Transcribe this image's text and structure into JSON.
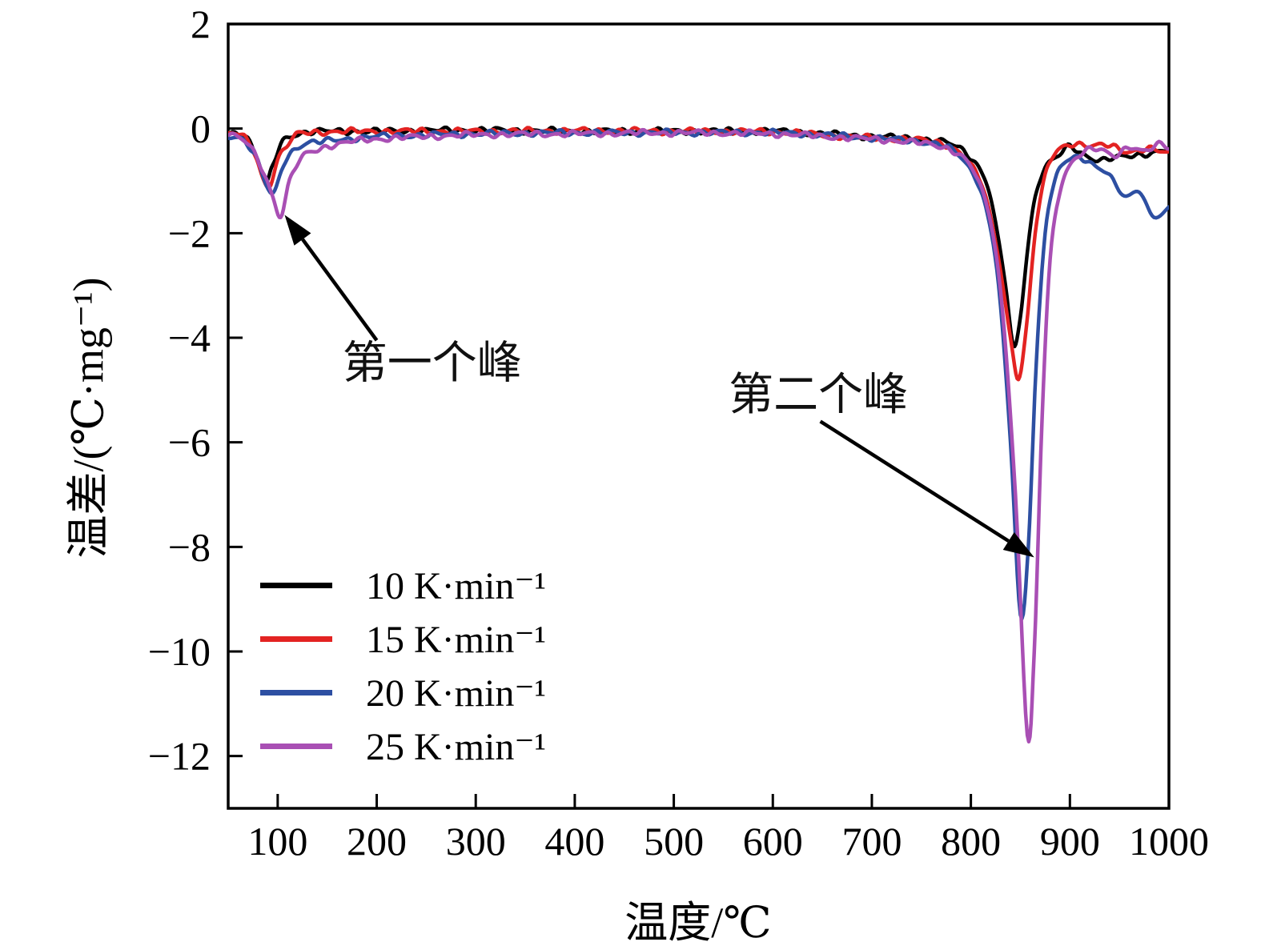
{
  "figure": {
    "background": "#ffffff",
    "frame_color": "#000000"
  },
  "chart_data": {
    "type": "line",
    "title": "",
    "xlabel": "温度/℃",
    "ylabel": "温差/(℃·mg⁻¹)",
    "xlim": [
      50,
      1000
    ],
    "ylim": [
      -13,
      2
    ],
    "x_ticks": [
      100,
      200,
      300,
      400,
      500,
      600,
      700,
      800,
      900,
      1000
    ],
    "y_ticks": [
      2,
      0,
      -2,
      -4,
      -6,
      -8,
      -10,
      -12
    ],
    "grid": false,
    "legend_position": "lower-left",
    "noise_amplitude": 0.07,
    "series": [
      {
        "name": "10 K·min⁻¹",
        "color": "#000000",
        "points": [
          [
            50,
            -0.1
          ],
          [
            60,
            -0.08
          ],
          [
            70,
            -0.2
          ],
          [
            80,
            -0.6
          ],
          [
            88,
            -1.05
          ],
          [
            95,
            -0.7
          ],
          [
            105,
            -0.25
          ],
          [
            120,
            -0.1
          ],
          [
            150,
            -0.05
          ],
          [
            200,
            -0.05
          ],
          [
            300,
            -0.03
          ],
          [
            400,
            -0.05
          ],
          [
            500,
            -0.05
          ],
          [
            600,
            -0.05
          ],
          [
            650,
            -0.1
          ],
          [
            700,
            -0.15
          ],
          [
            750,
            -0.2
          ],
          [
            780,
            -0.3
          ],
          [
            800,
            -0.55
          ],
          [
            815,
            -1.0
          ],
          [
            825,
            -1.8
          ],
          [
            835,
            -3.0
          ],
          [
            843,
            -4.15
          ],
          [
            850,
            -3.6
          ],
          [
            858,
            -2.2
          ],
          [
            865,
            -1.3
          ],
          [
            875,
            -0.75
          ],
          [
            890,
            -0.5
          ],
          [
            900,
            -0.35
          ],
          [
            915,
            -0.5
          ],
          [
            930,
            -0.6
          ],
          [
            950,
            -0.55
          ],
          [
            970,
            -0.5
          ],
          [
            985,
            -0.45
          ],
          [
            1000,
            -0.4
          ]
        ]
      },
      {
        "name": "15 K·min⁻¹",
        "color": "#e32322",
        "points": [
          [
            50,
            -0.1
          ],
          [
            62,
            -0.12
          ],
          [
            75,
            -0.4
          ],
          [
            85,
            -0.95
          ],
          [
            92,
            -1.1
          ],
          [
            100,
            -0.6
          ],
          [
            115,
            -0.2
          ],
          [
            130,
            -0.08
          ],
          [
            200,
            -0.05
          ],
          [
            300,
            -0.05
          ],
          [
            400,
            -0.04
          ],
          [
            500,
            -0.05
          ],
          [
            600,
            -0.06
          ],
          [
            650,
            -0.12
          ],
          [
            700,
            -0.18
          ],
          [
            750,
            -0.22
          ],
          [
            780,
            -0.35
          ],
          [
            800,
            -0.7
          ],
          [
            815,
            -1.3
          ],
          [
            828,
            -2.5
          ],
          [
            840,
            -4.0
          ],
          [
            848,
            -4.8
          ],
          [
            856,
            -3.8
          ],
          [
            865,
            -2.0
          ],
          [
            875,
            -0.9
          ],
          [
            885,
            -0.45
          ],
          [
            900,
            -0.3
          ],
          [
            920,
            -0.35
          ],
          [
            940,
            -0.3
          ],
          [
            960,
            -0.45
          ],
          [
            980,
            -0.4
          ],
          [
            1000,
            -0.45
          ]
        ]
      },
      {
        "name": "20 K·min⁻¹",
        "color": "#2d4fa2",
        "points": [
          [
            50,
            -0.15
          ],
          [
            65,
            -0.2
          ],
          [
            78,
            -0.55
          ],
          [
            90,
            -1.15
          ],
          [
            97,
            -1.2
          ],
          [
            108,
            -0.6
          ],
          [
            125,
            -0.3
          ],
          [
            145,
            -0.25
          ],
          [
            170,
            -0.2
          ],
          [
            200,
            -0.15
          ],
          [
            300,
            -0.1
          ],
          [
            400,
            -0.08
          ],
          [
            500,
            -0.08
          ],
          [
            600,
            -0.08
          ],
          [
            650,
            -0.12
          ],
          [
            700,
            -0.18
          ],
          [
            750,
            -0.25
          ],
          [
            780,
            -0.4
          ],
          [
            800,
            -0.8
          ],
          [
            815,
            -1.5
          ],
          [
            828,
            -3.0
          ],
          [
            840,
            -6.0
          ],
          [
            850,
            -9.3
          ],
          [
            858,
            -8.0
          ],
          [
            866,
            -4.5
          ],
          [
            875,
            -2.0
          ],
          [
            885,
            -1.0
          ],
          [
            895,
            -0.65
          ],
          [
            910,
            -0.55
          ],
          [
            925,
            -0.7
          ],
          [
            940,
            -0.9
          ],
          [
            955,
            -1.3
          ],
          [
            970,
            -1.2
          ],
          [
            985,
            -1.7
          ],
          [
            1000,
            -1.5
          ]
        ]
      },
      {
        "name": "25 K·min⁻¹",
        "color": "#a94fb4",
        "points": [
          [
            50,
            -0.1
          ],
          [
            70,
            -0.3
          ],
          [
            85,
            -0.8
          ],
          [
            95,
            -1.3
          ],
          [
            103,
            -1.7
          ],
          [
            112,
            -1.0
          ],
          [
            125,
            -0.55
          ],
          [
            140,
            -0.4
          ],
          [
            160,
            -0.3
          ],
          [
            200,
            -0.2
          ],
          [
            300,
            -0.12
          ],
          [
            400,
            -0.1
          ],
          [
            500,
            -0.08
          ],
          [
            600,
            -0.1
          ],
          [
            650,
            -0.15
          ],
          [
            700,
            -0.2
          ],
          [
            750,
            -0.28
          ],
          [
            785,
            -0.45
          ],
          [
            805,
            -0.9
          ],
          [
            820,
            -1.8
          ],
          [
            832,
            -3.5
          ],
          [
            845,
            -7.0
          ],
          [
            857,
            -11.6
          ],
          [
            864,
            -10.0
          ],
          [
            872,
            -5.5
          ],
          [
            880,
            -2.5
          ],
          [
            890,
            -1.2
          ],
          [
            900,
            -0.7
          ],
          [
            915,
            -0.45
          ],
          [
            930,
            -0.4
          ],
          [
            945,
            -0.5
          ],
          [
            960,
            -0.35
          ],
          [
            975,
            -0.45
          ],
          [
            990,
            -0.3
          ],
          [
            1000,
            -0.35
          ]
        ]
      }
    ],
    "annotations": [
      {
        "text": "第一个峰",
        "text_pos": [
          256,
          -4.5
        ],
        "arrow_from": [
          200,
          -4.05
        ],
        "arrow_to": [
          107,
          -1.65
        ]
      },
      {
        "text": "第二个峰",
        "text_pos": [
          646,
          -5.1
        ],
        "arrow_from": [
          648,
          -5.6
        ],
        "arrow_to": [
          864,
          -8.2
        ]
      }
    ]
  }
}
